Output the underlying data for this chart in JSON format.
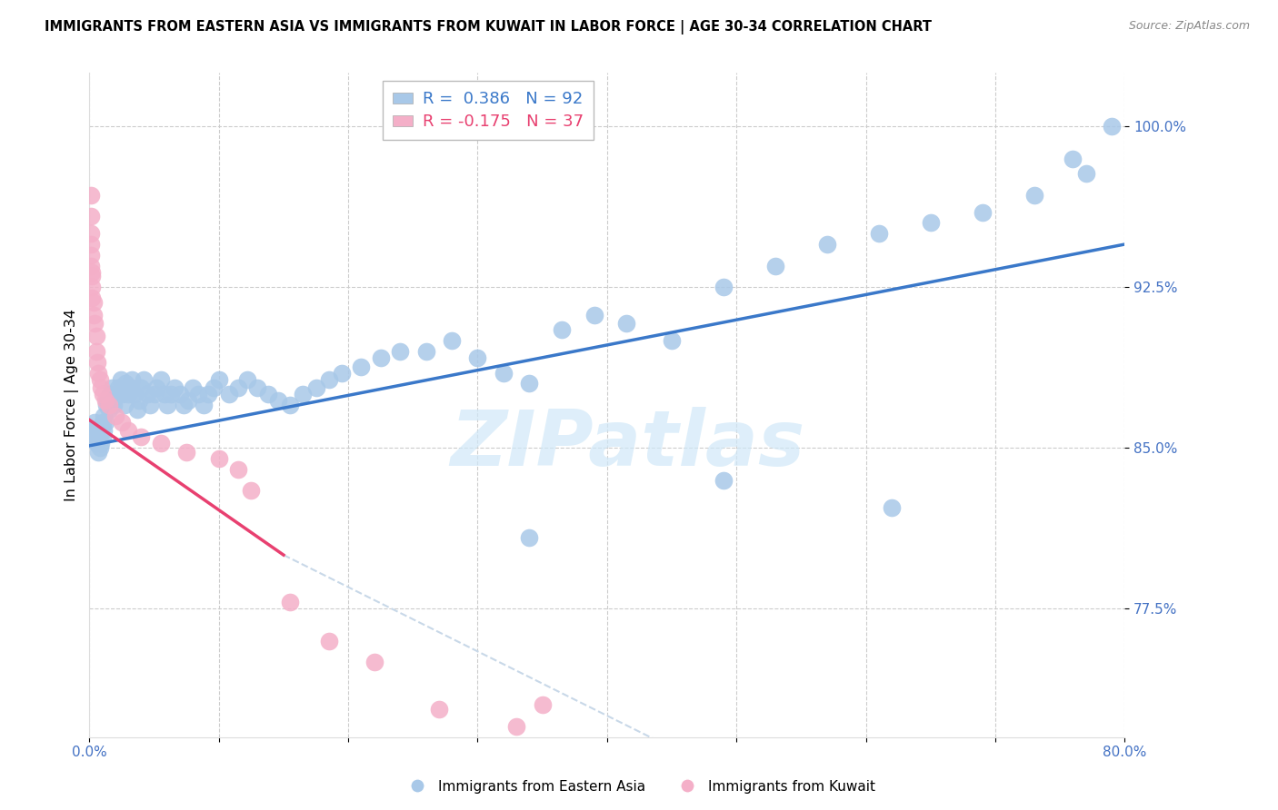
{
  "title": "IMMIGRANTS FROM EASTERN ASIA VS IMMIGRANTS FROM KUWAIT IN LABOR FORCE | AGE 30-34 CORRELATION CHART",
  "source": "Source: ZipAtlas.com",
  "ylabel": "In Labor Force | Age 30-34",
  "xlim": [
    0.0,
    0.8
  ],
  "ylim": [
    0.715,
    1.025
  ],
  "xticks": [
    0.0,
    0.1,
    0.2,
    0.3,
    0.4,
    0.5,
    0.6,
    0.7,
    0.8
  ],
  "xtick_labels": [
    "0.0%",
    "",
    "",
    "",
    "",
    "",
    "",
    "",
    "80.0%"
  ],
  "yticks": [
    0.775,
    0.85,
    0.925,
    1.0
  ],
  "ytick_labels": [
    "77.5%",
    "85.0%",
    "92.5%",
    "100.0%"
  ],
  "legend_r_blue": "0.386",
  "legend_n_blue": "92",
  "legend_r_pink": "-0.175",
  "legend_n_pink": "37",
  "blue_color": "#a8c8e8",
  "pink_color": "#f4afc8",
  "line_blue_color": "#3a78c9",
  "line_pink_color": "#e84070",
  "line_pink_dashed_color": "#c8d8e8",
  "watermark_text": "ZIPatlas",
  "watermark_color": "#d0e8f8",
  "axis_tick_color": "#4472c4",
  "blue_x": [
    0.001,
    0.002,
    0.003,
    0.004,
    0.004,
    0.005,
    0.006,
    0.007,
    0.007,
    0.008,
    0.009,
    0.009,
    0.01,
    0.01,
    0.011,
    0.011,
    0.012,
    0.013,
    0.014,
    0.015,
    0.016,
    0.017,
    0.018,
    0.019,
    0.02,
    0.022,
    0.024,
    0.025,
    0.027,
    0.028,
    0.03,
    0.032,
    0.033,
    0.035,
    0.037,
    0.038,
    0.04,
    0.042,
    0.045,
    0.047,
    0.05,
    0.052,
    0.055,
    0.058,
    0.06,
    0.063,
    0.066,
    0.07,
    0.073,
    0.076,
    0.08,
    0.084,
    0.088,
    0.092,
    0.096,
    0.1,
    0.108,
    0.115,
    0.122,
    0.13,
    0.138,
    0.146,
    0.155,
    0.165,
    0.175,
    0.185,
    0.195,
    0.21,
    0.225,
    0.24,
    0.26,
    0.28,
    0.3,
    0.32,
    0.34,
    0.365,
    0.39,
    0.415,
    0.45,
    0.49,
    0.53,
    0.57,
    0.61,
    0.65,
    0.69,
    0.73,
    0.77,
    0.34,
    0.49,
    0.62,
    0.76,
    0.79
  ],
  "blue_y": [
    0.855,
    0.858,
    0.858,
    0.855,
    0.862,
    0.852,
    0.858,
    0.848,
    0.855,
    0.85,
    0.852,
    0.858,
    0.855,
    0.862,
    0.858,
    0.865,
    0.862,
    0.87,
    0.872,
    0.868,
    0.875,
    0.878,
    0.872,
    0.87,
    0.875,
    0.878,
    0.882,
    0.875,
    0.87,
    0.88,
    0.875,
    0.878,
    0.882,
    0.875,
    0.868,
    0.872,
    0.878,
    0.882,
    0.875,
    0.87,
    0.875,
    0.878,
    0.882,
    0.875,
    0.87,
    0.875,
    0.878,
    0.875,
    0.87,
    0.872,
    0.878,
    0.875,
    0.87,
    0.875,
    0.878,
    0.882,
    0.875,
    0.878,
    0.882,
    0.878,
    0.875,
    0.872,
    0.87,
    0.875,
    0.878,
    0.882,
    0.885,
    0.888,
    0.892,
    0.895,
    0.895,
    0.9,
    0.892,
    0.885,
    0.88,
    0.905,
    0.912,
    0.908,
    0.9,
    0.925,
    0.935,
    0.945,
    0.95,
    0.955,
    0.96,
    0.968,
    0.978,
    0.808,
    0.835,
    0.822,
    0.985,
    1.0
  ],
  "pink_x": [
    0.001,
    0.001,
    0.001,
    0.001,
    0.001,
    0.001,
    0.002,
    0.002,
    0.002,
    0.002,
    0.003,
    0.003,
    0.004,
    0.005,
    0.005,
    0.006,
    0.007,
    0.008,
    0.009,
    0.01,
    0.012,
    0.015,
    0.02,
    0.025,
    0.03,
    0.04,
    0.055,
    0.075,
    0.1,
    0.115,
    0.125,
    0.155,
    0.185,
    0.22,
    0.27,
    0.33,
    0.35
  ],
  "pink_y": [
    0.968,
    0.958,
    0.95,
    0.945,
    0.94,
    0.935,
    0.932,
    0.93,
    0.925,
    0.92,
    0.918,
    0.912,
    0.908,
    0.902,
    0.895,
    0.89,
    0.885,
    0.882,
    0.878,
    0.875,
    0.872,
    0.87,
    0.865,
    0.862,
    0.858,
    0.855,
    0.852,
    0.848,
    0.845,
    0.84,
    0.83,
    0.778,
    0.76,
    0.75,
    0.728,
    0.72,
    0.73
  ]
}
